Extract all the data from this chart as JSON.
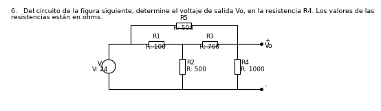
{
  "title_line1": "6.   Del circuito de la figura siguiente, determine el voltaje de salida Vo, en la resistencia R4. Los valores de las",
  "title_line2": "resistencias están en ohms.",
  "bg_color": "#ffffff",
  "line_color": "#000000",
  "font_size_title": 6.8,
  "font_size_labels": 6.5,
  "circuit": {
    "V_label": "V",
    "V_value": "V: 24",
    "R1_label": "R1",
    "R1_value": "R: 100",
    "R2_label": "R2",
    "R2_value": "R: 500",
    "R3_label": "R3",
    "R3_value": "R: 700",
    "R4_label": "R4",
    "R4_value": "R: 1000",
    "R5_label": "R5",
    "R5_value": "R: 500",
    "Vo_plus": "+",
    "Vo_label": "Vo",
    "Vo_minus": "-"
  }
}
